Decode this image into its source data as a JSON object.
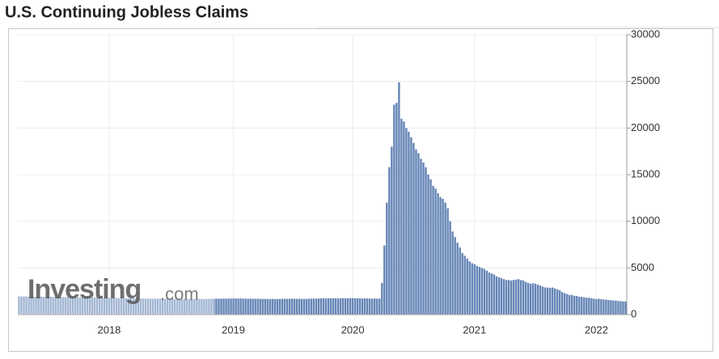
{
  "chart_data": {
    "type": "bar",
    "title": "U.S. Continuing Jobless Claims",
    "watermark": [
      "Investing",
      ".com"
    ],
    "color": "#6585b6",
    "grid": true,
    "ylim": [
      0,
      30000
    ],
    "yticks": [
      0,
      5000,
      10000,
      15000,
      20000,
      25000,
      30000
    ],
    "categories": [
      null,
      null,
      null,
      null,
      null,
      null,
      null,
      null,
      null,
      null,
      null,
      null,
      null,
      null,
      null,
      null,
      null,
      null,
      null,
      null,
      null,
      null,
      null,
      null,
      null,
      null,
      null,
      null,
      null,
      null,
      null,
      null,
      null,
      null,
      null,
      null,
      null,
      "2018",
      null,
      null,
      null,
      null,
      null,
      null,
      null,
      null,
      null,
      null,
      null,
      null,
      null,
      null,
      null,
      null,
      null,
      null,
      null,
      null,
      null,
      null,
      null,
      null,
      null,
      null,
      null,
      null,
      null,
      null,
      null,
      null,
      null,
      null,
      null,
      null,
      null,
      null,
      null,
      null,
      null,
      null,
      null,
      null,
      null,
      null,
      null,
      null,
      null,
      null,
      "2019",
      null,
      null,
      null,
      null,
      null,
      null,
      null,
      null,
      null,
      null,
      null,
      null,
      null,
      null,
      null,
      null,
      null,
      null,
      null,
      null,
      null,
      null,
      null,
      null,
      null,
      null,
      null,
      null,
      null,
      null,
      null,
      null,
      null,
      null,
      null,
      null,
      null,
      null,
      null,
      null,
      null,
      null,
      null,
      null,
      null,
      null,
      null,
      null,
      "2020",
      null,
      null,
      null,
      null,
      null,
      null,
      null,
      null,
      null,
      null,
      null,
      null,
      null,
      null,
      null,
      null,
      null,
      null,
      null,
      null,
      null,
      null,
      null,
      null,
      null,
      null,
      null,
      null,
      null,
      null,
      null,
      null,
      null,
      null,
      null,
      null,
      null,
      null,
      null,
      null,
      null,
      null,
      null,
      null,
      null,
      null,
      null,
      null,
      null,
      "2021",
      null,
      null,
      null,
      null,
      null,
      null,
      null,
      null,
      null,
      null,
      null,
      null,
      null,
      null,
      null,
      null,
      null,
      null,
      null,
      null,
      null,
      null,
      null,
      null,
      null,
      null,
      null,
      null,
      null,
      null,
      null,
      null,
      null,
      null,
      null,
      null,
      null,
      null,
      null,
      null,
      null,
      null,
      null,
      null,
      null,
      null,
      null,
      null,
      null,
      "2022",
      null,
      null,
      null,
      null,
      null,
      null,
      null,
      null,
      null,
      null,
      null,
      null
    ],
    "values": [
      1950,
      1940,
      1950,
      1930,
      1920,
      1930,
      1910,
      1900,
      1920,
      1910,
      1900,
      1890,
      1900,
      1910,
      1890,
      1880,
      1900,
      1890,
      1880,
      1870,
      1880,
      1870,
      1860,
      1870,
      1850,
      1860,
      1850,
      1840,
      1850,
      1830,
      1840,
      1830,
      1820,
      1830,
      1810,
      1820,
      1800,
      1780,
      1770,
      1760,
      1770,
      1750,
      1760,
      1740,
      1750,
      1730,
      1740,
      1730,
      1720,
      1730,
      1710,
      1720,
      1700,
      1710,
      1700,
      1690,
      1700,
      1690,
      1700,
      1680,
      1690,
      1700,
      1680,
      1690,
      1670,
      1680,
      1690,
      1670,
      1680,
      1660,
      1670,
      1680,
      1660,
      1670,
      1680,
      1660,
      1670,
      1680,
      1670,
      1690,
      1680,
      1700,
      1690,
      1700,
      1710,
      1700,
      1720,
      1710,
      1720,
      1730,
      1710,
      1720,
      1700,
      1710,
      1690,
      1700,
      1690,
      1680,
      1690,
      1680,
      1670,
      1680,
      1670,
      1660,
      1680,
      1670,
      1660,
      1670,
      1680,
      1690,
      1680,
      1690,
      1700,
      1690,
      1680,
      1690,
      1680,
      1670,
      1680,
      1690,
      1700,
      1710,
      1700,
      1720,
      1730,
      1740,
      1720,
      1730,
      1740,
      1750,
      1740,
      1730,
      1750,
      1760,
      1740,
      1750,
      1760,
      1760,
      1750,
      1740,
      1730,
      1720,
      1730,
      1720,
      1710,
      1700,
      1720,
      1700,
      1710,
      3400,
      7400,
      12000,
      15800,
      18000,
      22500,
      22700,
      24900,
      21000,
      20700,
      20000,
      19600,
      19000,
      18400,
      17700,
      17300,
      16700,
      16300,
      15800,
      15000,
      14500,
      13800,
      13500,
      13000,
      12600,
      12400,
      12000,
      11400,
      10000,
      8900,
      8300,
      7700,
      7200,
      6600,
      6300,
      6000,
      5700,
      5500,
      5400,
      5200,
      5100,
      5000,
      4900,
      4700,
      4500,
      4400,
      4300,
      4100,
      4000,
      3900,
      3800,
      3700,
      3700,
      3650,
      3700,
      3750,
      3800,
      3700,
      3650,
      3500,
      3400,
      3300,
      3350,
      3300,
      3200,
      3100,
      3000,
      2900,
      2900,
      2850,
      2900,
      2800,
      2700,
      2600,
      2400,
      2300,
      2200,
      2100,
      2100,
      2000,
      2000,
      1900,
      1900,
      1850,
      1800,
      1800,
      1750,
      1700,
      1650,
      1700,
      1650,
      1600,
      1600,
      1550,
      1550,
      1500,
      1500,
      1450,
      1450,
      1400,
      1400
    ]
  }
}
